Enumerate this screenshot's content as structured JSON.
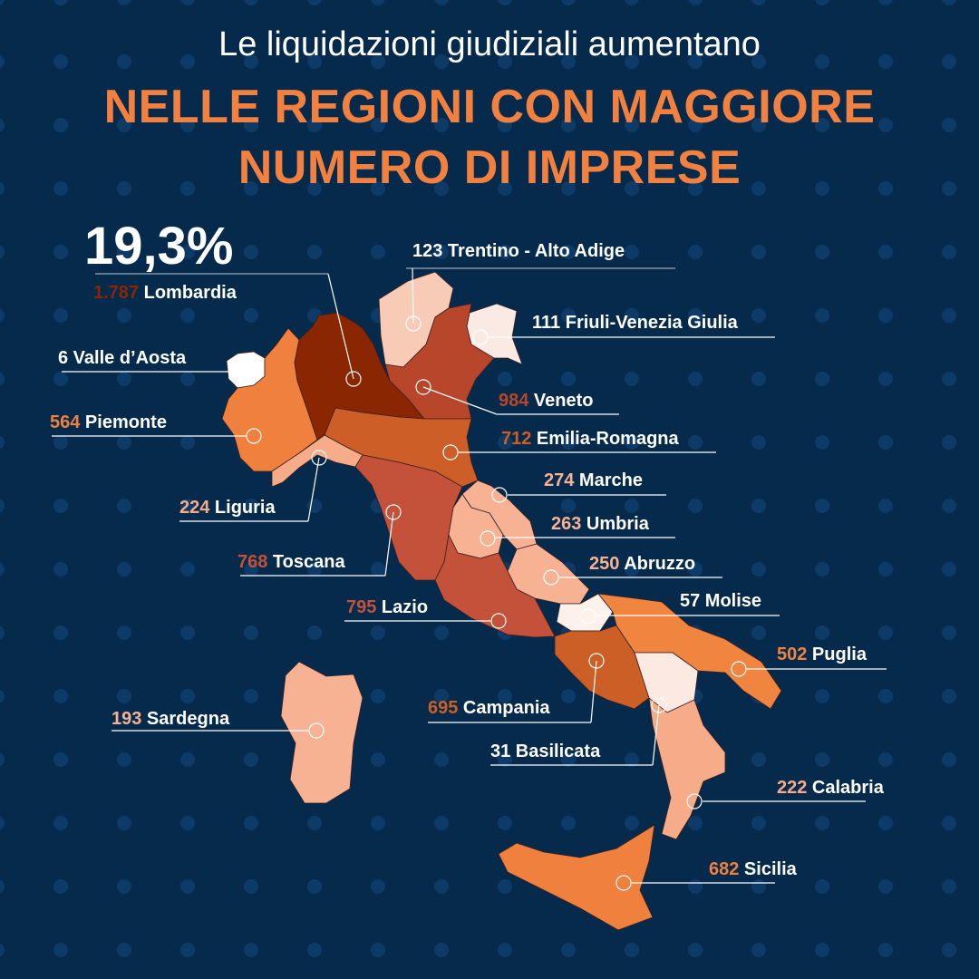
{
  "title": {
    "line1": "Le liquidazioni giudiziali aumentano",
    "line2": "NELLE REGIONI CON MAGGIORE",
    "line3": "NUMERO DI IMPRESE"
  },
  "highlight": {
    "percentage": "19,3%",
    "region": "Lombardia"
  },
  "colors": {
    "background": "#052a4c",
    "accent": "#f2803f",
    "dots": "#0d3a66"
  },
  "regions": [
    {
      "id": "lombardia",
      "value": "1.787",
      "name": "Lombardia",
      "color": "#8b2602"
    },
    {
      "id": "trentino",
      "value": "123",
      "name": "Trentino - Alto Adige",
      "color": "#f8cbb6"
    },
    {
      "id": "friuli",
      "value": "111",
      "name": "Friuli-Venezia Giulia",
      "color": "#fbeae4"
    },
    {
      "id": "valle",
      "value": "6",
      "name": "Valle d’Aosta",
      "color": "#ffffff"
    },
    {
      "id": "veneto",
      "value": "984",
      "name": "Veneto",
      "color": "#b8462a"
    },
    {
      "id": "piemonte",
      "value": "564",
      "name": "Piemonte",
      "color": "#ef803e"
    },
    {
      "id": "emilia",
      "value": "712",
      "name": "Emilia-Romagna",
      "color": "#cd5e27"
    },
    {
      "id": "liguria",
      "value": "224",
      "name": "Liguria",
      "color": "#f6ac88"
    },
    {
      "id": "marche",
      "value": "274",
      "name": "Marche",
      "color": "#f6b293"
    },
    {
      "id": "umbria",
      "value": "263",
      "name": "Umbria",
      "color": "#f6b293"
    },
    {
      "id": "toscana",
      "value": "768",
      "name": "Toscana",
      "color": "#c4513a"
    },
    {
      "id": "abruzzo",
      "value": "250",
      "name": "Abruzzo",
      "color": "#f6b293"
    },
    {
      "id": "molise",
      "value": "57",
      "name": "Molise",
      "color": "#fdf1ec"
    },
    {
      "id": "lazio",
      "value": "795",
      "name": "Lazio",
      "color": "#c4513a"
    },
    {
      "id": "puglia",
      "value": "502",
      "name": "Puglia",
      "color": "#ef853f"
    },
    {
      "id": "campania",
      "value": "695",
      "name": "Campania",
      "color": "#cb5f25"
    },
    {
      "id": "sardegna",
      "value": "193",
      "name": "Sardegna",
      "color": "#f6b293"
    },
    {
      "id": "basilicata",
      "value": "31",
      "name": "Basilicata",
      "color": "#fbe9e2"
    },
    {
      "id": "calabria",
      "value": "222",
      "name": "Calabria",
      "color": "#f6ac88"
    },
    {
      "id": "sicilia",
      "value": "682",
      "name": "Sicilia",
      "color": "#ef803e"
    }
  ]
}
